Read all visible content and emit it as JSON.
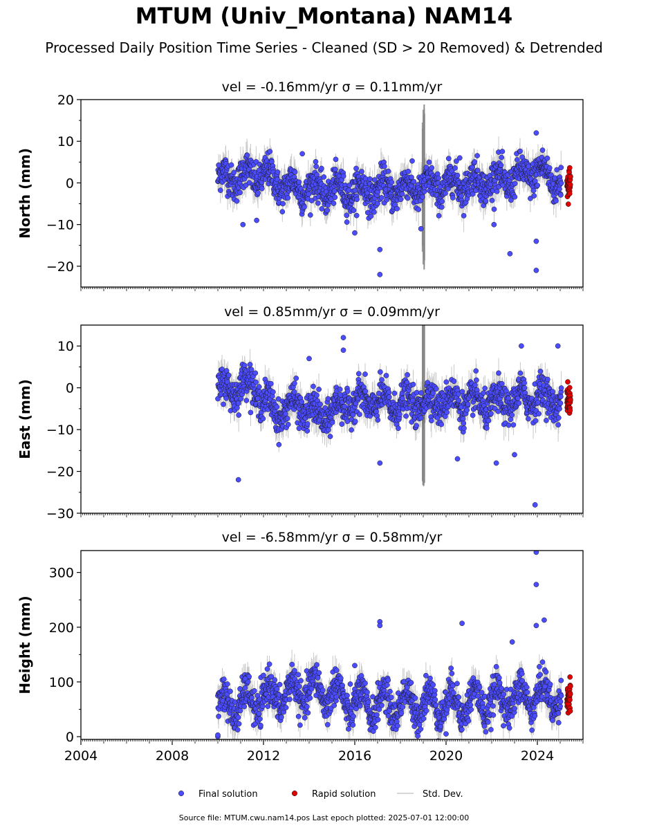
{
  "title": "MTUM (Univ_Montana) NAM14",
  "subtitle": "Processed Daily Position Time Series - Cleaned (SD > 20 Removed) & Detrended",
  "footer": "Source file: MTUM.cwu.nam14.pos  Last epoch plotted: 2025-07-01 12:00:00",
  "colors": {
    "final": "#4b4bff",
    "rapid": "#e00000",
    "stddev": "#c8c8c8",
    "edge": "#1a1a1a"
  },
  "chart_data": [
    {
      "type": "scatter",
      "title": "vel = -0.16mm/yr   σ = 0.11mm/yr",
      "ylabel": "North (mm)",
      "ylim": [
        -25,
        20
      ],
      "yticks": [
        20,
        10,
        0,
        -10,
        -20
      ],
      "ytick_labels": [
        "20",
        "10",
        "0",
        "−10",
        "−20"
      ],
      "xlim": [
        2004.0,
        2026.0
      ],
      "data_start": 2010.0,
      "rapid_start": 2025.05,
      "data_end": 2025.5,
      "final_level": [
        [
          2010.0,
          1
        ],
        [
          2012.0,
          2
        ],
        [
          2013.0,
          -1
        ],
        [
          2016.0,
          -2
        ],
        [
          2019.0,
          -1
        ],
        [
          2021.0,
          0
        ],
        [
          2023.0,
          1
        ],
        [
          2024.0,
          3
        ],
        [
          2025.0,
          0
        ]
      ],
      "outliers": [
        [
          2011.7,
          -9
        ],
        [
          2011.1,
          -10
        ],
        [
          2013.7,
          7
        ],
        [
          2017.1,
          -16
        ],
        [
          2017.1,
          -22
        ],
        [
          2018.9,
          -11
        ],
        [
          2020.6,
          6
        ],
        [
          2022.8,
          -17
        ],
        [
          2023.95,
          12
        ],
        [
          2023.95,
          -14
        ],
        [
          2023.95,
          -21
        ],
        [
          2022.1,
          -10
        ],
        [
          2016.0,
          -12
        ]
      ]
    },
    {
      "type": "scatter",
      "title": "vel = 0.85mm/yr   σ = 0.09mm/yr",
      "ylabel": "East (mm)",
      "ylim": [
        -30,
        15
      ],
      "yticks": [
        10,
        0,
        -10,
        -20,
        -30
      ],
      "ytick_labels": [
        "10",
        "0",
        "−10",
        "−20",
        "−30"
      ],
      "xlim": [
        2004.0,
        2026.0
      ],
      "data_start": 2010.0,
      "rapid_start": 2025.05,
      "data_end": 2025.5,
      "final_level": [
        [
          2010.0,
          -1
        ],
        [
          2011.5,
          1
        ],
        [
          2012.0,
          -3
        ],
        [
          2012.6,
          -6
        ],
        [
          2013.5,
          -4
        ],
        [
          2014.5,
          -7
        ],
        [
          2016.0,
          -3
        ],
        [
          2018.0,
          -4
        ],
        [
          2020.0,
          -3
        ],
        [
          2022.0,
          -4
        ],
        [
          2024.0,
          -2
        ],
        [
          2025.0,
          -3
        ]
      ],
      "outliers": [
        [
          2010.9,
          -22
        ],
        [
          2014.0,
          7
        ],
        [
          2015.5,
          12
        ],
        [
          2015.5,
          9
        ],
        [
          2017.1,
          -18
        ],
        [
          2020.5,
          -17
        ],
        [
          2022.2,
          -18
        ],
        [
          2023.0,
          -16
        ],
        [
          2023.9,
          -28
        ],
        [
          2023.3,
          10
        ],
        [
          2024.9,
          10
        ]
      ]
    },
    {
      "type": "scatter",
      "title": "vel = -6.58mm/yr   σ = 0.58mm/yr",
      "ylabel": "Height (mm)",
      "ylim": [
        -5,
        340
      ],
      "yticks": [
        300,
        200,
        100,
        0
      ],
      "ytick_labels": [
        "300",
        "200",
        "100",
        "0"
      ],
      "xticks": [
        2004,
        2008,
        2012,
        2016,
        2020,
        2024
      ],
      "xtick_labels": [
        "2004",
        "2008",
        "2012",
        "2016",
        "2020",
        "2024"
      ],
      "xlim": [
        2004.0,
        2026.0
      ],
      "data_start": 2010.0,
      "rapid_start": 2025.05,
      "data_end": 2025.5,
      "final_level": [
        [
          2010.0,
          55
        ],
        [
          2011.0,
          60
        ],
        [
          2012.0,
          70
        ],
        [
          2013.0,
          78
        ],
        [
          2014.0,
          85
        ],
        [
          2015.0,
          80
        ],
        [
          2016.0,
          60
        ],
        [
          2018.0,
          60
        ],
        [
          2020.0,
          60
        ],
        [
          2022.0,
          65
        ],
        [
          2024.0,
          75
        ],
        [
          2025.0,
          72
        ]
      ],
      "outliers": [
        [
          2010.0,
          0
        ],
        [
          2010.0,
          3
        ],
        [
          2011.2,
          106
        ],
        [
          2012.0,
          112
        ],
        [
          2017.1,
          210
        ],
        [
          2017.1,
          203
        ],
        [
          2020.7,
          207
        ],
        [
          2020.0,
          5
        ],
        [
          2023.95,
          337
        ],
        [
          2023.95,
          278
        ],
        [
          2023.95,
          203
        ],
        [
          2024.3,
          213
        ],
        [
          2022.9,
          173
        ],
        [
          2016.0,
          130
        ]
      ]
    }
  ],
  "legend": {
    "items": [
      {
        "label": "Final solution",
        "marker": "final"
      },
      {
        "label": "Rapid solution",
        "marker": "rapid"
      },
      {
        "label": "Std. Dev.",
        "marker": "line"
      }
    ]
  }
}
